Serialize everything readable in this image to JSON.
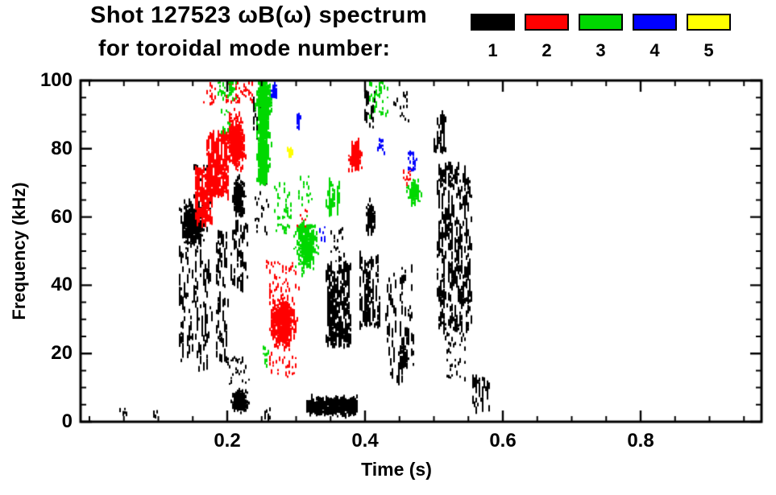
{
  "title": {
    "text": "Shot 127523 ωB(ω) spectrum"
  },
  "subtitle": {
    "text": "for toroidal mode number:"
  },
  "legend": {
    "modes": [
      {
        "label": "1",
        "color": "#000000"
      },
      {
        "label": "2",
        "color": "#ff0000"
      },
      {
        "label": "3",
        "color": "#00d800"
      },
      {
        "label": "4",
        "color": "#0000ff"
      },
      {
        "label": "5",
        "color": "#ffff00"
      }
    ]
  },
  "axes": {
    "x": {
      "title": "Time (s)",
      "major_ticks": [
        {
          "value": 0.2,
          "label": "0.2"
        },
        {
          "value": 0.4,
          "label": "0.4"
        },
        {
          "value": 0.6,
          "label": "0.6"
        },
        {
          "value": 0.8,
          "label": "0.8"
        }
      ],
      "minor_step": 0.05,
      "range": [
        0,
        0.975
      ]
    },
    "y": {
      "title": "Frequency (kHz)",
      "major_ticks": [
        {
          "value": 0,
          "label": "0"
        },
        {
          "value": 20,
          "label": "20"
        },
        {
          "value": 40,
          "label": "40"
        },
        {
          "value": 60,
          "label": "60"
        },
        {
          "value": 80,
          "label": "80"
        },
        {
          "value": 100,
          "label": "100"
        }
      ],
      "minor_step": 5,
      "range": [
        0,
        100
      ]
    }
  },
  "chart_data": {
    "type": "scatter",
    "title": "Shot 127523 ωB(ω) spectrum",
    "subtitle": "for toroidal mode number: 1-5",
    "xlabel": "Time (s)",
    "ylabel": "Frequency (kHz)",
    "xlim": [
      0,
      0.975
    ],
    "ylim": [
      0,
      100
    ],
    "x_ticks": [
      0.2,
      0.4,
      0.6,
      0.8
    ],
    "y_ticks": [
      0,
      20,
      40,
      60,
      80,
      100
    ],
    "grid": false,
    "legend_position": "top",
    "series": [
      {
        "name": "toroidal mode n=1",
        "color": "#000000",
        "clusters": [
          {
            "style": "sparse",
            "t": [
              0.042,
              0.054
            ],
            "f": [
              1,
              4
            ],
            "n": 7
          },
          {
            "style": "sparse",
            "t": [
              0.09,
              0.1
            ],
            "f": [
              1,
              3
            ],
            "n": 5
          },
          {
            "style": "blob",
            "t": [
              0.127,
              0.173
            ],
            "f": [
              49,
              66
            ],
            "n": 500
          },
          {
            "style": "streaks",
            "t": [
              0.13,
              0.176
            ],
            "f": [
              15,
              50
            ],
            "n": 120
          },
          {
            "style": "sparse",
            "t": [
              0.15,
              0.176
            ],
            "f": [
              62,
              76
            ],
            "n": 30
          },
          {
            "style": "streaks",
            "t": [
              0.183,
              0.2
            ],
            "f": [
              18,
              55
            ],
            "n": 80
          },
          {
            "style": "blob",
            "t": [
              0.206,
              0.226
            ],
            "f": [
              59,
              72
            ],
            "n": 280
          },
          {
            "style": "streaks",
            "t": [
              0.204,
              0.228
            ],
            "f": [
              38,
              58
            ],
            "n": 50
          },
          {
            "style": "blob",
            "t": [
              0.203,
              0.231
            ],
            "f": [
              2,
              10
            ],
            "n": 280
          },
          {
            "style": "sparse",
            "t": [
              0.2,
              0.23
            ],
            "f": [
              11,
              19
            ],
            "n": 28
          },
          {
            "style": "streaks",
            "t": [
              0.236,
              0.248
            ],
            "f": [
              84,
              95
            ],
            "n": 22
          },
          {
            "style": "sparse",
            "t": [
              0.238,
              0.26
            ],
            "f": [
              55,
              70
            ],
            "n": 22
          },
          {
            "style": "sparse",
            "t": [
              0.253,
              0.262
            ],
            "f": [
              0,
              4
            ],
            "n": 10
          },
          {
            "style": "band",
            "t": [
              0.315,
              0.388
            ],
            "f": [
              1,
              8
            ],
            "n": 560
          },
          {
            "style": "streaks",
            "t": [
              0.343,
              0.378
            ],
            "f": [
              22,
              46
            ],
            "n": 230
          },
          {
            "style": "sparse",
            "t": [
              0.35,
              0.368
            ],
            "f": [
              47,
              57
            ],
            "n": 20
          },
          {
            "style": "streaks",
            "t": [
              0.39,
              0.42
            ],
            "f": [
              28,
              48
            ],
            "n": 110
          },
          {
            "style": "blob",
            "t": [
              0.398,
              0.416
            ],
            "f": [
              54,
              66
            ],
            "n": 120
          },
          {
            "style": "streaks",
            "t": [
              0.398,
              0.413
            ],
            "f": [
              86,
              97
            ],
            "n": 28
          },
          {
            "style": "streaks",
            "t": [
              0.43,
              0.47
            ],
            "f": [
              12,
              45
            ],
            "n": 80
          },
          {
            "style": "blob",
            "t": [
              0.448,
              0.463
            ],
            "f": [
              14,
              23
            ],
            "n": 80
          },
          {
            "style": "streaks",
            "t": [
              0.503,
              0.553
            ],
            "f": [
              27,
              75
            ],
            "n": 340
          },
          {
            "style": "streaks",
            "t": [
              0.5,
              0.516
            ],
            "f": [
              79,
              89
            ],
            "n": 40
          },
          {
            "style": "sparse",
            "t": [
              0.515,
              0.545
            ],
            "f": [
              12,
              26
            ],
            "n": 40
          },
          {
            "style": "sparse",
            "t": [
              0.438,
              0.462
            ],
            "f": [
              88,
              97
            ],
            "n": 16
          },
          {
            "style": "streaks",
            "t": [
              0.556,
              0.58
            ],
            "f": [
              3,
              13
            ],
            "n": 36
          }
        ]
      },
      {
        "name": "toroidal mode n=2",
        "color": "#ff0000",
        "clusters": [
          {
            "style": "streaks",
            "t": [
              0.153,
              0.178
            ],
            "f": [
              58,
              74
            ],
            "n": 150
          },
          {
            "style": "streaks",
            "t": [
              0.17,
              0.2
            ],
            "f": [
              66,
              84
            ],
            "n": 190
          },
          {
            "style": "blob",
            "t": [
              0.195,
              0.227
            ],
            "f": [
              72,
              92
            ],
            "n": 430
          },
          {
            "style": "sparse",
            "t": [
              0.198,
              0.236
            ],
            "f": [
              93,
              100
            ],
            "n": 45
          },
          {
            "style": "sparse",
            "t": [
              0.166,
              0.182
            ],
            "f": [
              92,
              100
            ],
            "n": 16
          },
          {
            "style": "blob",
            "t": [
              0.256,
              0.302
            ],
            "f": [
              20,
              38
            ],
            "n": 620
          },
          {
            "style": "sparse",
            "t": [
              0.255,
              0.305
            ],
            "f": [
              38,
              47
            ],
            "n": 45
          },
          {
            "style": "sparse",
            "t": [
              0.26,
              0.3
            ],
            "f": [
              13,
              20
            ],
            "n": 30
          },
          {
            "style": "blob",
            "t": [
              0.374,
              0.396
            ],
            "f": [
              72,
              84
            ],
            "n": 150
          },
          {
            "style": "sparse",
            "t": [
              0.3,
              0.316
            ],
            "f": [
              55,
              62
            ],
            "n": 18
          },
          {
            "style": "sparse",
            "t": [
              0.455,
              0.468
            ],
            "f": [
              69,
              74
            ],
            "n": 14
          }
        ]
      },
      {
        "name": "toroidal mode n=3",
        "color": "#00d800",
        "clusters": [
          {
            "style": "vband",
            "t": [
              0.24,
              0.263
            ],
            "f": [
              70,
              100
            ],
            "n": 560
          },
          {
            "style": "blob",
            "t": [
              0.236,
              0.268
            ],
            "f": [
              88,
              100
            ],
            "n": 200
          },
          {
            "style": "sparse",
            "t": [
              0.185,
              0.212
            ],
            "f": [
              94,
              100
            ],
            "n": 40
          },
          {
            "style": "blob",
            "t": [
              0.293,
              0.335
            ],
            "f": [
              42,
              62
            ],
            "n": 330
          },
          {
            "style": "sparse",
            "t": [
              0.268,
              0.292
            ],
            "f": [
              55,
              70
            ],
            "n": 45
          },
          {
            "style": "streaks",
            "t": [
              0.343,
              0.362
            ],
            "f": [
              62,
              70
            ],
            "n": 40
          },
          {
            "style": "sparse",
            "t": [
              0.405,
              0.432
            ],
            "f": [
              88,
              100
            ],
            "n": 45
          },
          {
            "style": "blob",
            "t": [
              0.458,
              0.482
            ],
            "f": [
              62,
              72
            ],
            "n": 110
          },
          {
            "style": "sparse",
            "t": [
              0.248,
              0.258
            ],
            "f": [
              16,
              22
            ],
            "n": 14
          },
          {
            "style": "sparse",
            "t": [
              0.188,
              0.202
            ],
            "f": [
              84,
              92
            ],
            "n": 12
          },
          {
            "style": "sparse",
            "t": [
              0.3,
              0.322
            ],
            "f": [
              63,
              72
            ],
            "n": 18
          }
        ]
      },
      {
        "name": "toroidal mode n=4",
        "color": "#0000ff",
        "clusters": [
          {
            "style": "blob",
            "t": [
              0.263,
              0.272
            ],
            "f": [
              94,
              100
            ],
            "n": 40
          },
          {
            "style": "blob",
            "t": [
              0.298,
              0.306
            ],
            "f": [
              85,
              92
            ],
            "n": 30
          },
          {
            "style": "sparse",
            "t": [
              0.418,
              0.426
            ],
            "f": [
              78,
              83
            ],
            "n": 14
          },
          {
            "style": "sparse",
            "t": [
              0.462,
              0.474
            ],
            "f": [
              73,
              79
            ],
            "n": 22
          },
          {
            "style": "sparse",
            "t": [
              0.333,
              0.341
            ],
            "f": [
              53,
              57
            ],
            "n": 8
          }
        ]
      },
      {
        "name": "toroidal mode n=5",
        "color": "#ffff00",
        "clusters": [
          {
            "style": "blob",
            "t": [
              0.284,
              0.296
            ],
            "f": [
              77,
              81
            ],
            "n": 35
          }
        ]
      }
    ]
  }
}
